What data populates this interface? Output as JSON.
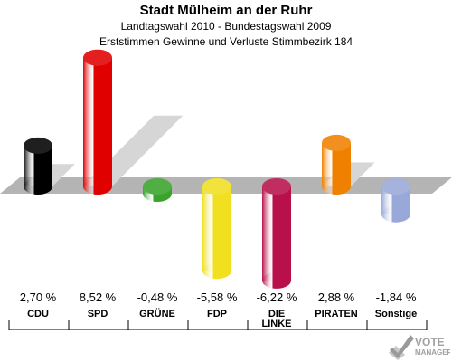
{
  "header": {
    "title": "Stadt Mülheim an der Ruhr",
    "subtitle1": "Landtagswahl 2010 - Bundestagswahl 2009",
    "subtitle2": "Erststimmen Gewinne und Verluste Stimmbezirk 184"
  },
  "chart_data": {
    "type": "bar",
    "title": "Stadt Mülheim an der Ruhr",
    "subtitle": "Landtagswahl 2010 - Bundestagswahl 2009 / Erststimmen Gewinne und Verluste Stimmbezirk 184",
    "categories": [
      "CDU",
      "SPD",
      "GRÜNE",
      "FDP",
      "DIE LINKE",
      "PIRATEN",
      "Sonstige"
    ],
    "category_lines": [
      [
        "CDU"
      ],
      [
        "SPD"
      ],
      [
        "GRÜNE"
      ],
      [
        "FDP"
      ],
      [
        "DIE",
        "LINKE"
      ],
      [
        "PIRATEN"
      ],
      [
        "Sonstige"
      ]
    ],
    "values": [
      2.7,
      8.52,
      -0.48,
      -5.58,
      -6.22,
      2.88,
      -1.84
    ],
    "value_labels": [
      "2,70 %",
      "8,52 %",
      "-0,48 %",
      "-5,58 %",
      "-6,22 %",
      "2,88 %",
      "-1,84 %"
    ],
    "colors": [
      "#000000",
      "#e00000",
      "#3aa32b",
      "#f0e020",
      "#b8104a",
      "#f08000",
      "#98a8d8"
    ],
    "xlabel": "",
    "ylabel": "",
    "unit": "%",
    "ylim": [
      -6.5,
      9
    ],
    "grid": false,
    "legend": "none"
  },
  "logo": {
    "line1": "VOTE",
    "line2": "MANAGER",
    "icon": "checkmark-ballot-icon"
  }
}
